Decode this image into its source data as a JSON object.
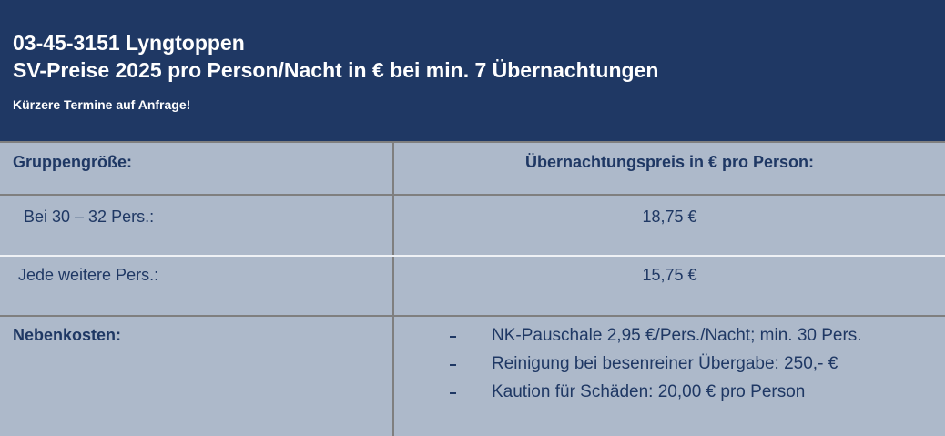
{
  "header": {
    "title": "03-45-3151 Lyngtoppen",
    "subtitle": "SV-Preise 2025 pro Person/Nacht in € bei min. 7 Übernachtungen",
    "note": "Kürzere Termine auf Anfrage!"
  },
  "table": {
    "columns": [
      "Gruppengröße:",
      "Übernachtungspreis in € pro Person:"
    ],
    "rows": [
      [
        "Bei 30 – 32 Pers.:",
        "18,75 €"
      ],
      [
        "Jede weitere Pers.:",
        "15,75 €"
      ]
    ],
    "extra": {
      "label": "Nebenkosten:",
      "items": [
        "NK-Pauschale 2,95 €/Pers./Nacht; min. 30 Pers.",
        "Reinigung bei besenreiner Übergabe: 250,- €",
        "Kaution für Schäden: 20,00 € pro Person"
      ]
    }
  }
}
